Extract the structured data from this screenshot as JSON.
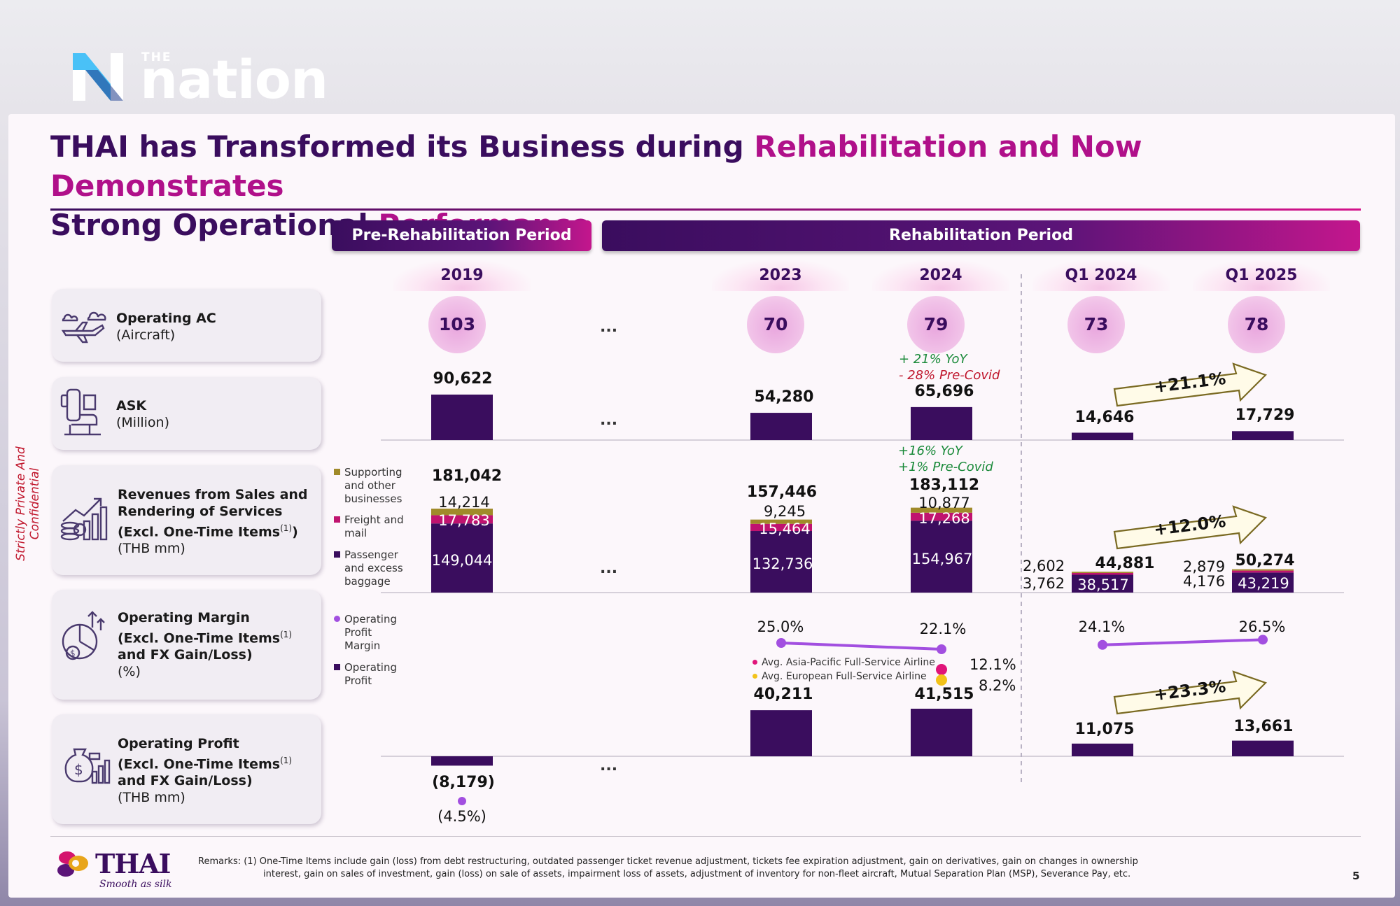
{
  "brand": {
    "the": "THE",
    "name": "nation"
  },
  "title": {
    "part1": "THAI has Transformed its Business during",
    "part2": "Rehabilitation and Now Demonstrates",
    "part3": "Strong Operational",
    "part4": "Performance"
  },
  "confidential": "Strictly Private And Confidential",
  "periods": {
    "pre": "Pre-Rehabilitation Period",
    "rehab": "Rehabilitation Period"
  },
  "years": [
    "2019",
    "2023",
    "2024",
    "Q1 2024",
    "Q1 2025"
  ],
  "ellipsis": "...",
  "metrics": {
    "ac": {
      "name": "Operating AC",
      "unit": "(Aircraft)"
    },
    "ask": {
      "name": "ASK",
      "unit": "(Million)"
    },
    "rev": {
      "l1": "Revenues from Sales and",
      "l2": "Rendering of Services",
      "l3": "(Excl. One-Time Items",
      "sup": "(1)",
      "l3end": ")",
      "unit": "(THB mm)"
    },
    "margin": {
      "l1": "Operating Margin",
      "l2": "(Excl. One-Time Items",
      "sup": "(1)",
      "l3": "and FX Gain/Loss)",
      "unit": "(%)"
    },
    "profit": {
      "l1": "Operating Profit",
      "l2": "(Excl. One-Time Items",
      "sup": "(1)",
      "l3": "and FX Gain/Loss)",
      "unit": "(THB mm)"
    }
  },
  "legend": {
    "supporting": "Supporting and other businesses",
    "supporting_l1": "Supporting",
    "supporting_l2": "and other",
    "supporting_l3": "businesses",
    "freight_l1": "Freight and",
    "freight_l2": "mail",
    "passenger_l1": "Passenger",
    "passenger_l2": "and excess",
    "passenger_l3": "baggage",
    "opm_l1": "Operating",
    "opm_l2": "Profit",
    "opm_l3": "Margin",
    "op_l1": "Operating",
    "op_l2": "Profit",
    "apac": "Avg. Asia-Pacific Full-Service Airline",
    "eu": "Avg. European Full-Service Airline"
  },
  "notes": {
    "ask_yoy": "+ 21% YoY",
    "ask_pre": "- 28% Pre-Covid",
    "rev_yoy": "+16% YoY",
    "rev_pre": "+1% Pre-Covid"
  },
  "growth": {
    "ask": "+21.1%",
    "rev": "+12.0%",
    "profit": "+23.3%"
  },
  "benchmarks": {
    "apac": "12.1%",
    "eu": "8.2%"
  },
  "colors": {
    "purple": "#3a0d5e",
    "freight": "#c0136f",
    "supporting": "#a08a2a",
    "line": "#a24fe0",
    "apac_dot": "#e0147a",
    "eu_dot": "#f2c21a"
  },
  "chart_data": [
    {
      "type": "table",
      "title": "Operating AC (Aircraft)",
      "categories": [
        "2019",
        "2023",
        "2024",
        "Q1 2024",
        "Q1 2025"
      ],
      "values": [
        103,
        70,
        79,
        73,
        78
      ],
      "labels": [
        "103",
        "70",
        "79",
        "73",
        "78"
      ]
    },
    {
      "type": "bar",
      "title": "ASK (Million)",
      "categories": [
        "2019",
        "2023",
        "2024",
        "Q1 2024",
        "Q1 2025"
      ],
      "values": [
        90622,
        54280,
        65696,
        14646,
        17729
      ],
      "labels": [
        "90,622",
        "54,280",
        "65,696",
        "14,646",
        "17,729"
      ]
    },
    {
      "type": "bar",
      "stacked": true,
      "title": "Revenues from Sales and Rendering of Services (THB mm)",
      "categories": [
        "2019",
        "2023",
        "2024",
        "Q1 2024",
        "Q1 2025"
      ],
      "series": [
        {
          "name": "Passenger and excess baggage",
          "values": [
            149044,
            132736,
            154967,
            38517,
            43219
          ],
          "labels": [
            "149,044",
            "132,736",
            "154,967",
            "38,517",
            "43,219"
          ]
        },
        {
          "name": "Freight and mail",
          "values": [
            17783,
            15464,
            17268,
            3762,
            4176
          ],
          "labels": [
            "17,783",
            "15,464",
            "17,268",
            "3,762",
            "4,176"
          ]
        },
        {
          "name": "Supporting and other businesses",
          "values": [
            14214,
            9245,
            10877,
            2602,
            2879
          ],
          "labels": [
            "14,214",
            "9,245",
            "10,877",
            "2,602",
            "2,879"
          ]
        }
      ],
      "totals": [
        181042,
        157446,
        183112,
        44881,
        50274
      ],
      "total_labels": [
        "181,042",
        "157,446",
        "183,112",
        "44,881",
        "50,274"
      ]
    },
    {
      "type": "line",
      "title": "Operating Profit Margin (%)",
      "categories": [
        "2019",
        "2023",
        "2024",
        "Q1 2024",
        "Q1 2025"
      ],
      "values": [
        -4.5,
        25.0,
        22.1,
        24.1,
        26.5
      ],
      "labels": [
        "(4.5%)",
        "25.0%",
        "22.1%",
        "24.1%",
        "26.5%"
      ]
    },
    {
      "type": "bar",
      "title": "Operating Profit (THB mm)",
      "categories": [
        "2019",
        "2023",
        "2024",
        "Q1 2024",
        "Q1 2025"
      ],
      "values": [
        -8179,
        40211,
        41515,
        11075,
        13661
      ],
      "labels": [
        "(8,179)",
        "40,211",
        "41,515",
        "11,075",
        "13,661"
      ]
    }
  ],
  "remarks": {
    "l1": "Remarks: (1) One-Time Items include gain (loss) from debt restructuring, outdated passenger ticket revenue adjustment, tickets fee expiration adjustment, gain on derivatives, gain on changes in ownership",
    "l2": "interest, gain on sales of investment, gain (loss) on sale of assets, impairment loss of assets, adjustment of inventory for non-fleet aircraft, Mutual Separation Plan (MSP), Severance Pay, etc."
  },
  "footer": {
    "thai": "THAI",
    "tagline": "Smooth as silk",
    "page": "5"
  }
}
